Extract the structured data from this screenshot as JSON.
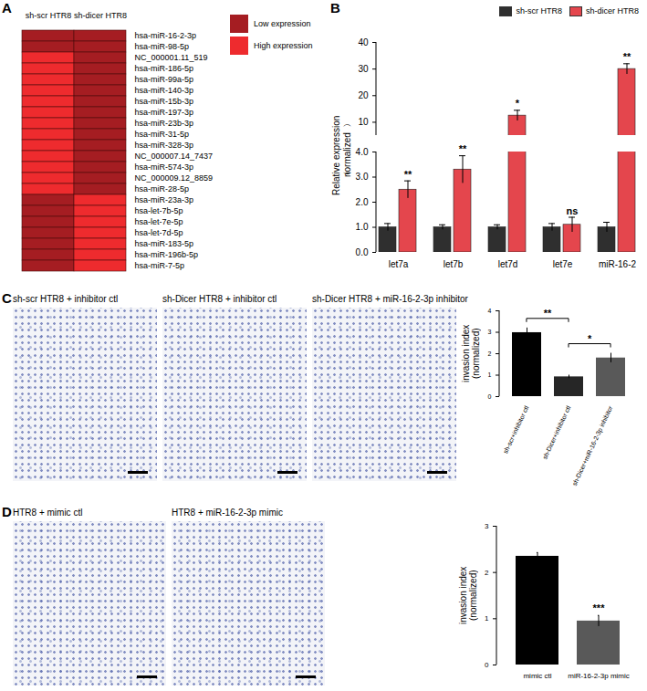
{
  "chart_data": [
    {
      "type": "heatmap",
      "annotations": [
        "A"
      ],
      "columns": [
        "sh-scr HTR8",
        "sh-dicer HTR8"
      ],
      "rows": [
        "hsa-miR-16-2-3p",
        "hsa-miR-98-5p",
        "NC_000001.11_519",
        "hsa-miR-186-5p",
        "hsa-miR-99a-5p",
        "hsa-miR-140-3p",
        "hsa-miR-15b-3p",
        "hsa-miR-197-3p",
        "hsa-miR-23b-3p",
        "hsa-miR-31-5p",
        "hsa-miR-328-3p",
        "NC_000007.14_7437",
        "hsa-miR-574-3p",
        "NC_000009.12_8859",
        "hsa-miR-28-5p",
        "hsa-miR-23a-3p",
        "hsa-let-7b-5p",
        "hsa-let-7e-5p",
        "hsa-let-7d-5p",
        "hsa-miR-183-5p",
        "hsa-miR-196b-5p",
        "hsa-miR-7-5p"
      ],
      "levels": [
        "Low expression",
        "High expression"
      ],
      "colors": [
        "#a51d22",
        "#ee2b2e"
      ],
      "cells": [
        [
          "Low expression",
          "Low expression"
        ],
        [
          "Low expression",
          "Low expression"
        ],
        [
          "High expression",
          "Low expression"
        ],
        [
          "High expression",
          "Low expression"
        ],
        [
          "High expression",
          "Low expression"
        ],
        [
          "High expression",
          "Low expression"
        ],
        [
          "High expression",
          "Low expression"
        ],
        [
          "High expression",
          "Low expression"
        ],
        [
          "High expression",
          "Low expression"
        ],
        [
          "High expression",
          "Low expression"
        ],
        [
          "High expression",
          "Low expression"
        ],
        [
          "High expression",
          "Low expression"
        ],
        [
          "High expression",
          "Low expression"
        ],
        [
          "High expression",
          "Low expression"
        ],
        [
          "High expression",
          "Low expression"
        ],
        [
          "Low expression",
          "High expression"
        ],
        [
          "Low expression",
          "High expression"
        ],
        [
          "Low expression",
          "High expression"
        ],
        [
          "Low expression",
          "High expression"
        ],
        [
          "Low expression",
          "High expression"
        ],
        [
          "Low expression",
          "High expression"
        ],
        [
          "Low expression",
          "High expression"
        ]
      ]
    },
    {
      "type": "bar",
      "annotations": [
        "B"
      ],
      "categories": [
        "let7a",
        "let7b",
        "let7d",
        "let7e",
        "miR-16-2"
      ],
      "series": [
        {
          "name": "sh-scr HTR8",
          "color": "#2f2f2f",
          "values": [
            1,
            1,
            1,
            1,
            1
          ],
          "errors": [
            0.15,
            0.1,
            0.1,
            0.15,
            0.2
          ]
        },
        {
          "name": "sh-dicer HTR8",
          "color": "#e4464d",
          "values": [
            2.5,
            3.3,
            12.5,
            1.1,
            30
          ],
          "errors": [
            0.35,
            0.55,
            2,
            0.3,
            2
          ],
          "significance": [
            "**",
            "**",
            "*",
            "ns",
            "**"
          ]
        }
      ],
      "ylabel": "Relative expression\n（normalized）",
      "ylim_lower": [
        0,
        4
      ],
      "yticks_lower": [
        0,
        1,
        2,
        3,
        4
      ],
      "ylim_upper": [
        5,
        40
      ],
      "yticks_upper": [
        10,
        20,
        30,
        40
      ],
      "legend": "top-right"
    },
    {
      "type": "bar",
      "annotations": [
        "C"
      ],
      "images": [
        "sh-scr HTR8 + inhibitor ctl",
        "sh-Dicer HTR8 + inhibitor ctl",
        "sh-Dicer HTR8 + miR-16-2-3p inhibitor"
      ],
      "categories": [
        "sh-scr+inhibitor ctl",
        "sh-Dicer+inhibitor ctl",
        "sh-Dicer+miR-16-2-3p inhibitor"
      ],
      "values": [
        2.98,
        0.92,
        1.8
      ],
      "errors": [
        0.22,
        0.08,
        0.22
      ],
      "colors": [
        "#000000",
        "#262626",
        "#595959"
      ],
      "ylabel": "invasion index\n(normalized)",
      "ylim": [
        0,
        4
      ],
      "yticks": [
        0,
        1,
        2,
        3,
        4
      ],
      "comparisons": [
        {
          "from": "sh-scr+inhibitor ctl",
          "to": "sh-Dicer+inhibitor ctl",
          "label": "**"
        },
        {
          "from": "sh-Dicer+inhibitor ctl",
          "to": "sh-Dicer+miR-16-2-3p inhibitor",
          "label": "*"
        }
      ]
    },
    {
      "type": "bar",
      "annotations": [
        "D"
      ],
      "images": [
        "HTR8 + mimic ctl",
        "HTR8 + miR-16-2-3p mimic"
      ],
      "categories": [
        "mimic ctl",
        "miR-16-2-3p mimic"
      ],
      "values": [
        2.35,
        0.95
      ],
      "errors": [
        0.08,
        0.12
      ],
      "colors": [
        "#000000",
        "#595959"
      ],
      "significance": [
        null,
        "***"
      ],
      "ylabel": "invasion index\n(normalized)",
      "ylim": [
        0,
        3
      ],
      "yticks": [
        0,
        1,
        2,
        3
      ]
    }
  ]
}
